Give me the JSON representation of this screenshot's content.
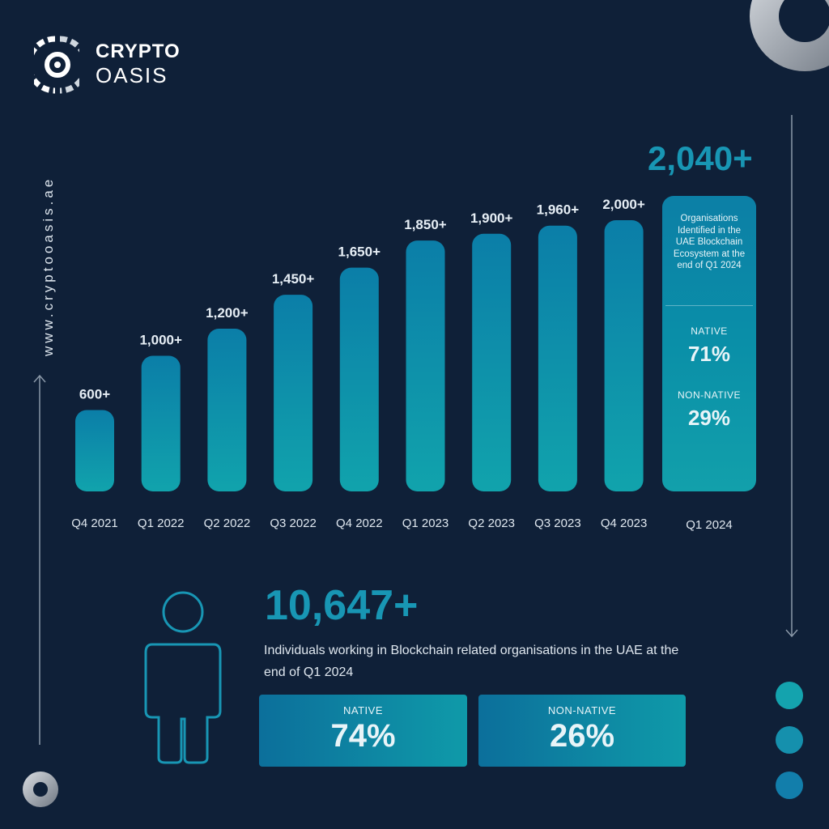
{
  "brand": {
    "name_line1": "CRYPTO",
    "name_line2": "OASIS",
    "website": "www.cryptooasis.ae"
  },
  "headline_total": "2,040+",
  "chart_data": {
    "type": "bar",
    "categories": [
      "Q4 2021",
      "Q1 2022",
      "Q2 2022",
      "Q3 2022",
      "Q4 2022",
      "Q1 2023",
      "Q2 2023",
      "Q3 2023",
      "Q4 2023",
      "Q1 2024"
    ],
    "values": [
      600,
      1000,
      1200,
      1450,
      1650,
      1850,
      1900,
      1960,
      2000,
      2040
    ],
    "labels": [
      "600+",
      "1,000+",
      "1,200+",
      "1,450+",
      "1,650+",
      "1,850+",
      "1,900+",
      "1,960+",
      "2,000+",
      ""
    ]
  },
  "info_box": {
    "description": "Organisations Identified in the UAE Blockchain Ecosystem at the end of Q1 2024",
    "native_label": "NATIVE",
    "native_value": "71%",
    "non_native_label": "NON-NATIVE",
    "non_native_value": "29%"
  },
  "people": {
    "count": "10,647+",
    "description": "Individuals working in Blockchain related organisations in the UAE at the end of Q1 2024",
    "native_label": "NATIVE",
    "native_value": "74%",
    "non_native_label": "NON-NATIVE",
    "non_native_value": "26%"
  },
  "colors": {
    "background": "#0f2038",
    "accent": "#1896b4",
    "bar_top": "#0b7ea8",
    "bar_bottom": "#11a3ac"
  }
}
